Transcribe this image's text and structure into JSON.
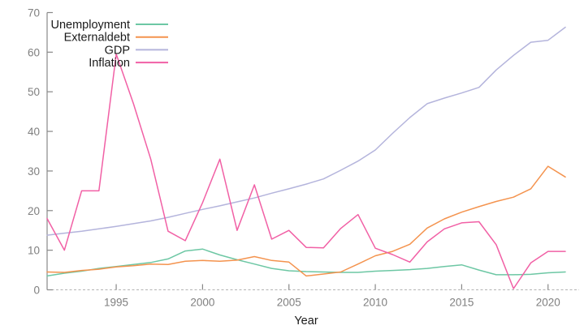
{
  "chart_data": {
    "type": "line",
    "title": "",
    "xlabel": "Year",
    "ylabel": "",
    "xlim": [
      1991,
      2021
    ],
    "ylim": [
      0,
      70
    ],
    "xticks": [
      1995,
      2000,
      2005,
      2010,
      2015,
      2020
    ],
    "yticks": [
      0,
      10,
      20,
      30,
      40,
      50,
      60,
      70
    ],
    "grid": false,
    "zero_line_style": "dashed",
    "legend_position": "top-left",
    "x": [
      1991,
      1992,
      1993,
      1994,
      1995,
      1996,
      1997,
      1998,
      1999,
      2000,
      2001,
      2002,
      2003,
      2004,
      2005,
      2006,
      2007,
      2008,
      2009,
      2010,
      2011,
      2012,
      2013,
      2014,
      2015,
      2016,
      2017,
      2018,
      2019,
      2020,
      2021
    ],
    "series": [
      {
        "name": "Unemployment",
        "color": "#6dc7a4",
        "values": [
          3.5,
          4.2,
          4.7,
          5.4,
          5.9,
          6.4,
          6.9,
          7.8,
          9.8,
          10.3,
          8.8,
          7.6,
          6.5,
          5.4,
          4.8,
          4.6,
          4.5,
          4.4,
          4.4,
          4.7,
          4.9,
          5.1,
          5.4,
          5.9,
          6.3,
          5.0,
          3.8,
          3.8,
          3.9,
          4.3,
          4.5
        ]
      },
      {
        "name": "Externaldebt",
        "color": "#f4934e",
        "values": [
          4.5,
          4.4,
          4.9,
          5.2,
          5.8,
          6.1,
          6.5,
          6.4,
          7.2,
          7.4,
          7.2,
          7.5,
          8.4,
          7.4,
          7.0,
          3.5,
          4.0,
          4.5,
          6.5,
          8.6,
          9.7,
          11.5,
          15.6,
          17.9,
          19.6,
          21.0,
          22.3,
          23.4,
          25.5,
          31.2,
          28.5
        ]
      },
      {
        "name": "GDP",
        "color": "#b4b4dc",
        "values": [
          13.8,
          14.3,
          14.8,
          15.4,
          16.0,
          16.7,
          17.4,
          18.3,
          19.3,
          20.3,
          21.2,
          22.2,
          23.2,
          24.4,
          25.5,
          26.7,
          28.0,
          30.2,
          32.5,
          35.3,
          39.5,
          43.5,
          47.0,
          48.4,
          49.7,
          51.1,
          55.5,
          59.2,
          62.5,
          63.0,
          66.3
        ]
      },
      {
        "name": "Inflation",
        "color": "#f160a5",
        "values": [
          18.0,
          10.0,
          25.0,
          25.0,
          59.5,
          47.0,
          33.0,
          14.8,
          12.4,
          22.0,
          33.0,
          15.0,
          26.5,
          12.8,
          15.0,
          10.7,
          10.6,
          15.5,
          19.0,
          10.5,
          8.9,
          7.0,
          12.1,
          15.4,
          16.9,
          17.2,
          11.4,
          0.3,
          6.8,
          9.7,
          9.7
        ]
      }
    ]
  },
  "style": {
    "axis_line_color": "#888888",
    "tick_color": "#888888",
    "tick_label_color": "#7f7f7f",
    "zero_line_color": "#b3b3b3",
    "background": "#ffffff"
  }
}
